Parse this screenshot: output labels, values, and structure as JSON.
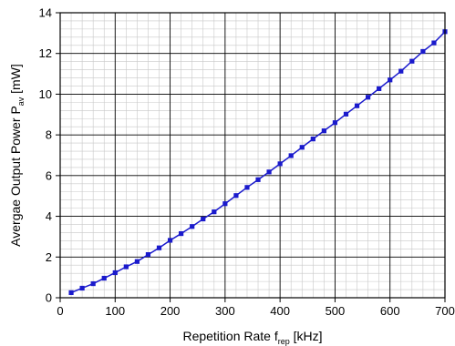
{
  "chart_data": {
    "type": "line",
    "xlabel": {
      "main": "Repetition Rate f",
      "sub": "rep",
      "unit": " [kHz]"
    },
    "ylabel": {
      "main": "Avergae Output Power P",
      "sub": "av",
      "unit": " [mW]"
    },
    "xlim": [
      0,
      700
    ],
    "ylim": [
      0,
      14
    ],
    "xticks": [
      "0",
      "100",
      "200",
      "300",
      "400",
      "500",
      "600",
      "700"
    ],
    "yticks": [
      "0",
      "2",
      "4",
      "6",
      "8",
      "10",
      "12",
      "14"
    ],
    "grid": {
      "major": true,
      "minor": true
    },
    "series": [
      {
        "color": "#1a1acc",
        "marker": "square",
        "x": [
          20,
          40,
          60,
          80,
          100,
          120,
          140,
          160,
          180,
          200,
          220,
          240,
          260,
          280,
          300,
          320,
          340,
          360,
          380,
          400,
          420,
          440,
          460,
          480,
          500,
          520,
          540,
          560,
          580,
          600,
          620,
          640,
          660,
          680,
          700
        ],
        "y": [
          0.25,
          0.47,
          0.69,
          0.96,
          1.23,
          1.52,
          1.78,
          2.12,
          2.45,
          2.82,
          3.15,
          3.5,
          3.87,
          4.22,
          4.62,
          5.02,
          5.42,
          5.8,
          6.18,
          6.58,
          6.98,
          7.39,
          7.8,
          8.2,
          8.6,
          9.02,
          9.43,
          9.85,
          10.27,
          10.7,
          11.13,
          11.62,
          12.1,
          12.52,
          13.07
        ]
      }
    ]
  }
}
